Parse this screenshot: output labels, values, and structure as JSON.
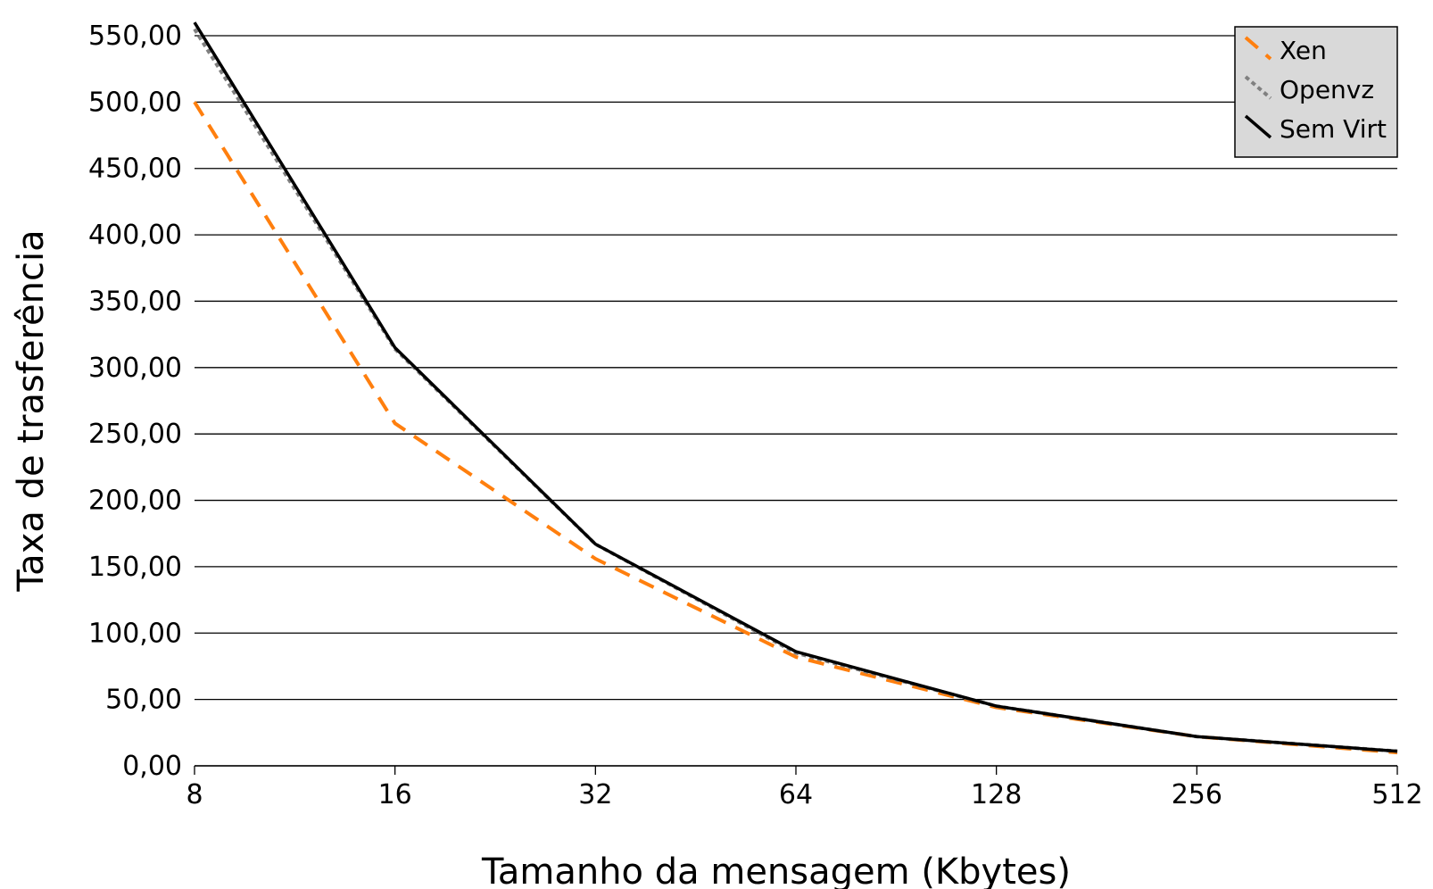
{
  "chart_data": {
    "type": "line",
    "xlabel": "Tamanho da mensagem (Kbytes)",
    "ylabel": "Taxa de trasferência",
    "x_scale": "log2",
    "categories": [
      "8",
      "16",
      "32",
      "64",
      "128",
      "256",
      "512"
    ],
    "x": [
      8,
      16,
      32,
      64,
      128,
      256,
      512
    ],
    "y_ticks": [
      "0,00",
      "50,00",
      "100,00",
      "150,00",
      "200,00",
      "250,00",
      "300,00",
      "350,00",
      "400,00",
      "450,00",
      "500,00",
      "550,00"
    ],
    "ylim": [
      0,
      550
    ],
    "grid": "horizontal",
    "legend_position": "top-right",
    "series": [
      {
        "name": "Xen",
        "color": "#ff7f0e",
        "style": "dashed",
        "values": [
          500,
          258,
          156,
          82,
          44,
          22,
          10
        ]
      },
      {
        "name": "Openvz",
        "color": "#808080",
        "style": "dotted",
        "values": [
          555,
          314,
          167,
          85,
          45,
          22,
          11
        ]
      },
      {
        "name": "Sem Virt",
        "color": "#000000",
        "style": "solid",
        "values": [
          560,
          315,
          167,
          86,
          45,
          22,
          11
        ]
      }
    ]
  }
}
